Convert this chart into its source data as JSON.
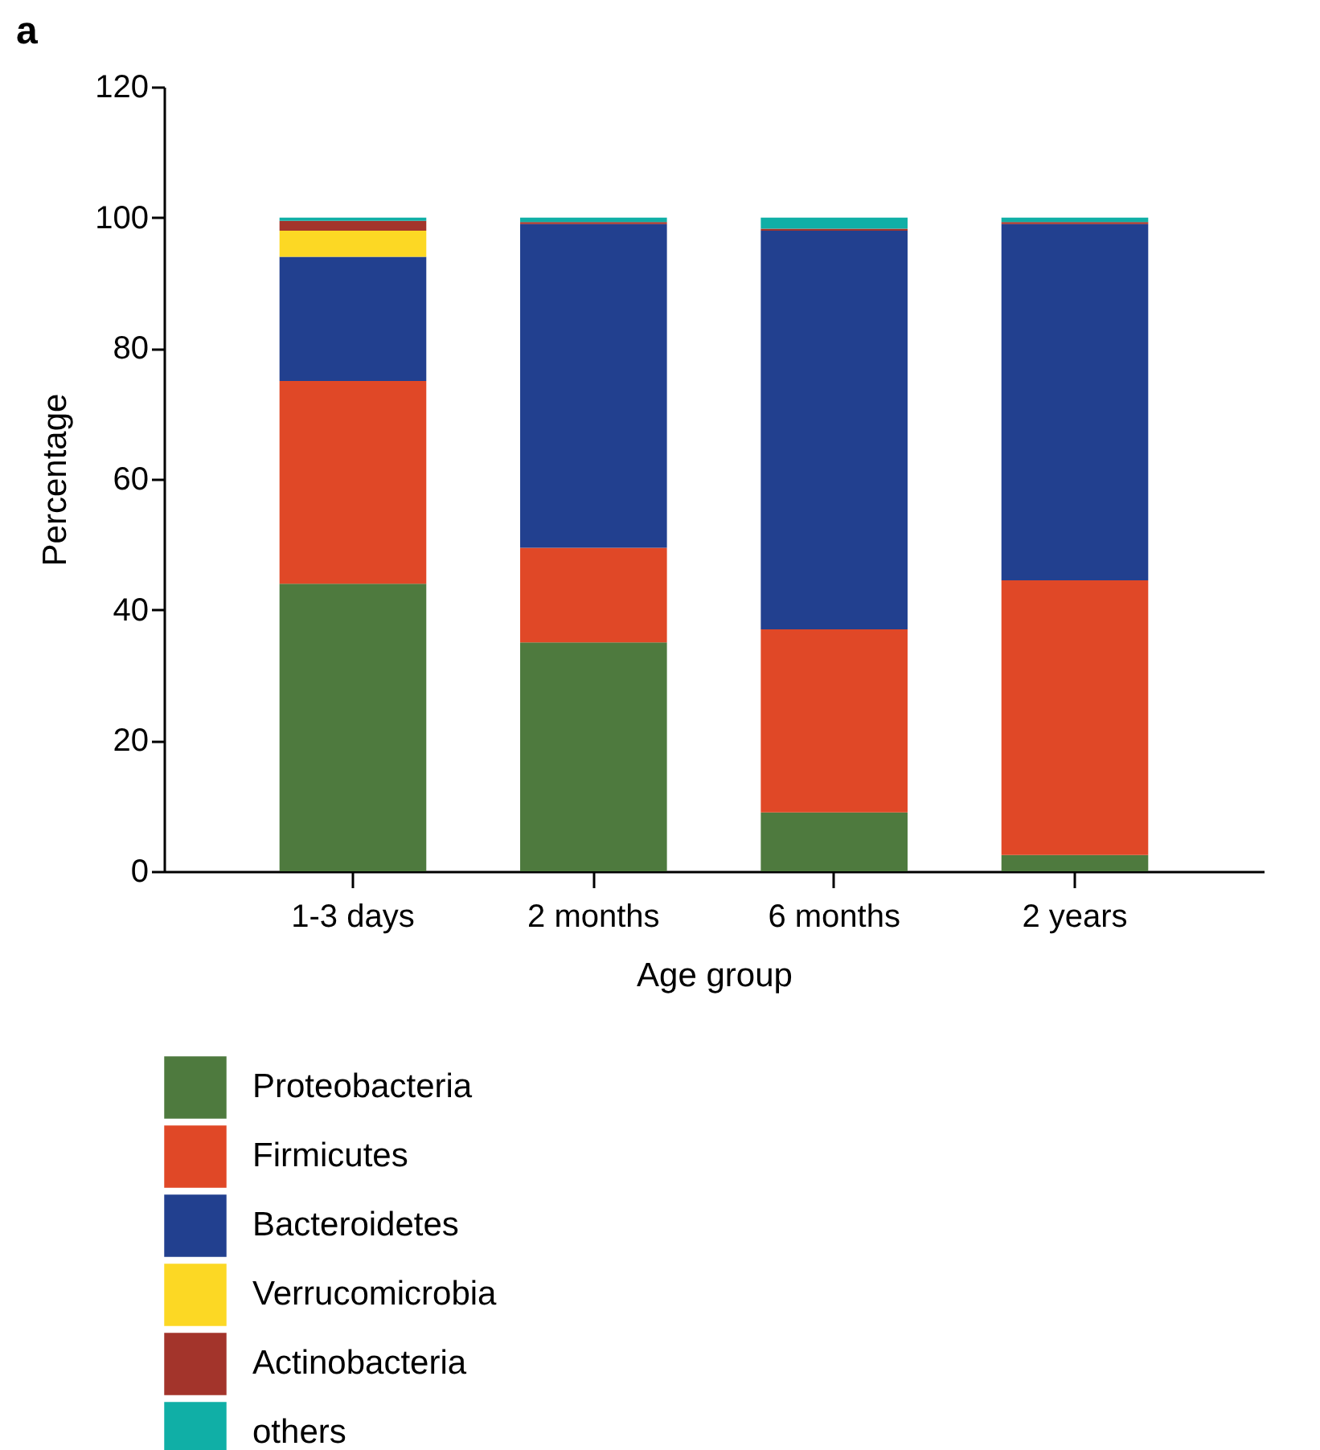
{
  "chart_data": {
    "type": "bar",
    "title": "a",
    "xlabel": "Age group",
    "ylabel": "Percentage",
    "stacked": true,
    "categories": [
      "1-3 days",
      "2 months",
      "6 months",
      "2 years"
    ],
    "series": [
      {
        "name": "Proteobacteria",
        "color": "#4e7a3e",
        "values": [
          44,
          35,
          9,
          2.5
        ]
      },
      {
        "name": "Firmicutes",
        "color": "#e04827",
        "values": [
          31,
          14.5,
          28,
          42
        ]
      },
      {
        "name": "Bacteroidetes",
        "color": "#22408f",
        "values": [
          19,
          49.5,
          61,
          54.5
        ]
      },
      {
        "name": "Verrucomicrobia",
        "color": "#fcd824",
        "values": [
          4,
          0,
          0,
          0
        ]
      },
      {
        "name": "Actinobacteria",
        "color": "#a3342b",
        "values": [
          1.5,
          0.3,
          0.3,
          0.3
        ]
      },
      {
        "name": "others",
        "color": "#10afa6",
        "values": [
          0.5,
          0.7,
          1.7,
          0.7
        ]
      }
    ],
    "ylim": [
      0,
      120
    ],
    "yticks": [
      0,
      20,
      40,
      60,
      80,
      100,
      120
    ],
    "grid": false,
    "legend": "bottom"
  }
}
